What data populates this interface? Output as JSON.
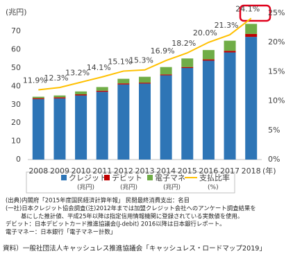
{
  "chart_data": {
    "type": "bar",
    "ylabel": "(兆円)",
    "xlabel": "(年)",
    "categories": [
      "2008",
      "2009",
      "2010",
      "2011",
      "2012",
      "2013",
      "2014",
      "2015",
      "2016",
      "2017",
      "2018"
    ],
    "ylim": [
      0,
      80
    ],
    "yticks": [
      0,
      10,
      20,
      30,
      40,
      50,
      60,
      70
    ],
    "y2lim": [
      0,
      25
    ],
    "y2ticks": [
      {
        "value": 0,
        "label": "0%"
      },
      {
        "value": 5,
        "label": "5%"
      },
      {
        "value": 10,
        "label": "10%"
      },
      {
        "value": 15,
        "label": "15%"
      },
      {
        "value": 20,
        "label": "20%"
      },
      {
        "value": 25,
        "label": "25%"
      }
    ],
    "series": [
      {
        "name": "クレジット",
        "unit": "(兆円)",
        "type": "bar",
        "color": "#2e75b6",
        "values": [
          33,
          33.4,
          35,
          37,
          41,
          41.5,
          46,
          50,
          54,
          58.5,
          67
        ]
      },
      {
        "name": "デビット",
        "unit": "(兆円)",
        "type": "bar",
        "color": "#c00000",
        "values": [
          0.5,
          0.6,
          0.6,
          0.6,
          0.6,
          0.5,
          0.5,
          0.5,
          0.7,
          0.9,
          1.6
        ]
      },
      {
        "name": "電子マネー",
        "unit": "(兆円)",
        "type": "bar",
        "color": "#70ad47",
        "values": [
          0.8,
          1.0,
          1.6,
          2.0,
          2.5,
          3.2,
          4.0,
          4.7,
          5.1,
          5.5,
          5.5
        ]
      },
      {
        "name": "支払比率",
        "unit": "(%)",
        "type": "line",
        "axis": "y2",
        "color": "#ffc000",
        "values": [
          11.9,
          12.3,
          13.2,
          14.1,
          15.1,
          15.3,
          16.9,
          18.2,
          20.0,
          21.3,
          24.1
        ],
        "value_labels": [
          "11.9%",
          "12.3%",
          "13.2%",
          "14.1%",
          "15.1%",
          "15.3%",
          "16.9%",
          "18.2%",
          "20.0%",
          "21.3%",
          "24.1%"
        ]
      }
    ]
  },
  "notes": [
    "(出典)内閣府「2015年度国民経済計算年報」 民間最終消費支出：名目",
    "(一社)日本クレジット協会調査(注)2012年までは加盟クレジット会社へのアンケート調査結果を",
    "基にした推計値、平成25年以降は指定信用情報機関に登録されている実数値を使用。",
    "デビット：日本デビットカード推進協議会(J-debit) 2016以降は日本銀行レポート。",
    "電子マネー：日本銀行「電子マネー計数」"
  ],
  "source": "資料）一般社団法人キャッシュレス推進協議会「キャッシュレス・ロードマップ2019」"
}
